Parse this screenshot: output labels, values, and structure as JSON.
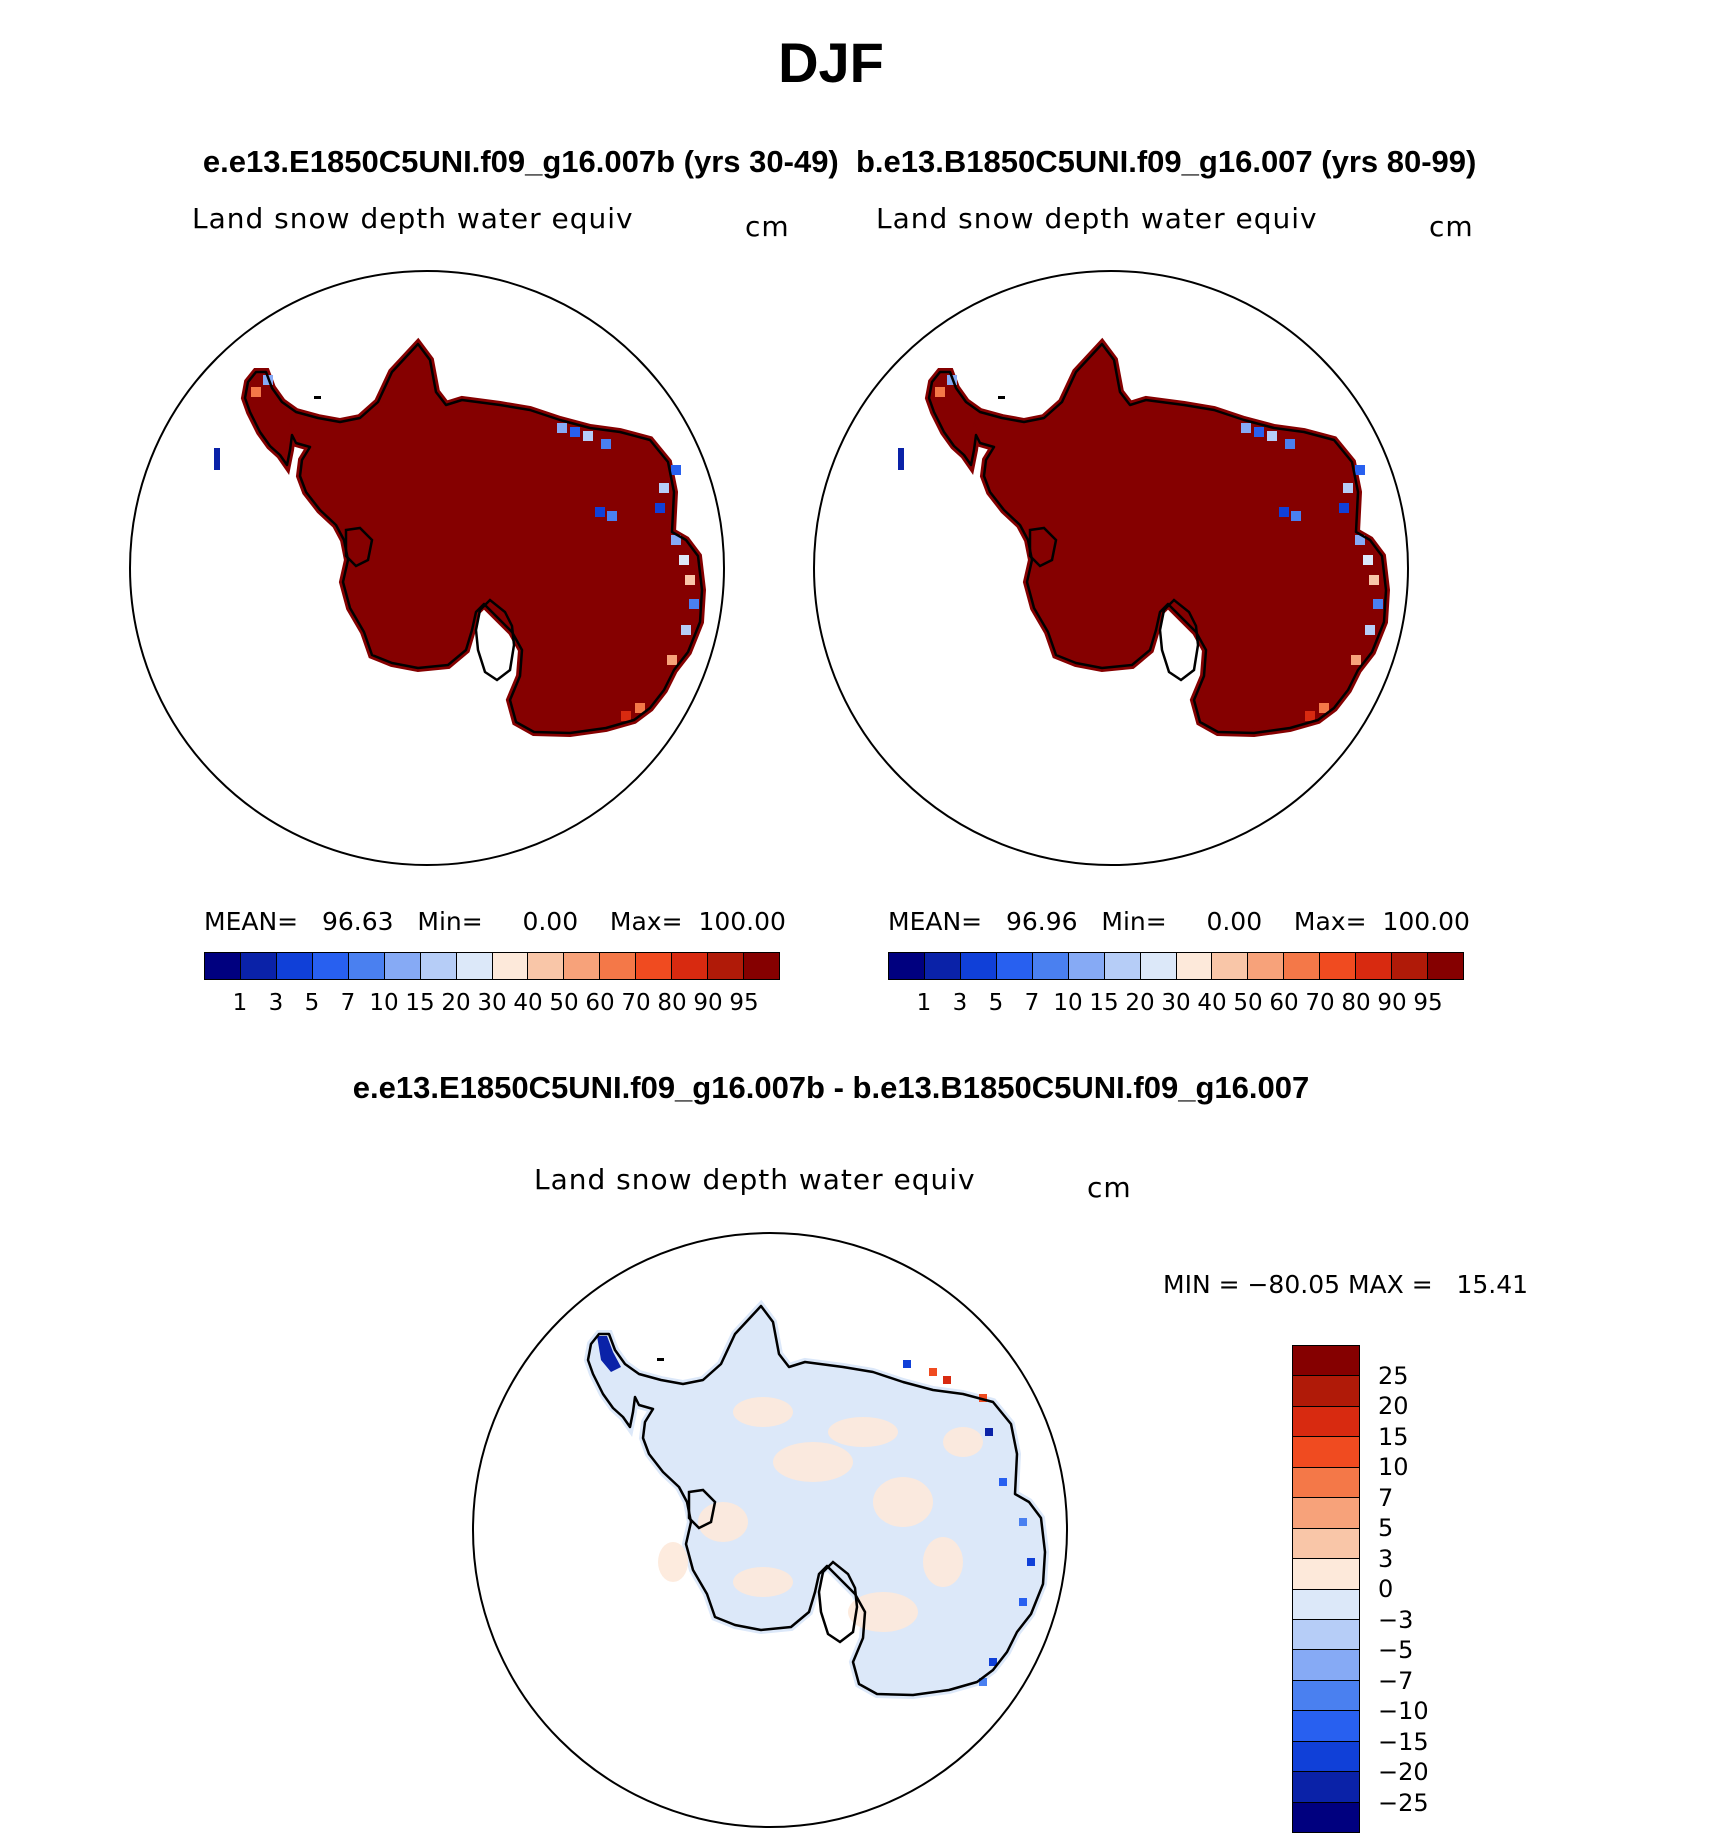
{
  "figure": {
    "season": "DJF",
    "subtitle_left": "e.e13.E1850C5UNI.f09_g16.007b (yrs 30-49)",
    "subtitle_right": "b.e13.B1850C5UNI.f09_g16.007 (yrs 80-99)",
    "diff_title": "e.e13.E1850C5UNI.f09_g16.007b - b.e13.B1850C5UNI.f09_g16.007"
  },
  "panels": [
    {
      "variable": "Land snow depth water equiv",
      "units": "cm",
      "mean_label": "MEAN=",
      "mean": "96.63",
      "min_label": "Min=",
      "min": "0.00",
      "max_label": "Max=",
      "max": "100.00"
    },
    {
      "variable": "Land snow depth water equiv",
      "units": "cm",
      "mean_label": "MEAN=",
      "mean": "96.96",
      "min_label": "Min=",
      "min": "0.00",
      "max_label": "Max=",
      "max": "100.00"
    }
  ],
  "diff_panel": {
    "variable": "Land snow depth water equiv",
    "units": "cm",
    "min_max": "MIN = −80.05 MAX =   15.41"
  },
  "colorbar": {
    "ticks": [
      "1",
      "3",
      "5",
      "7",
      "10",
      "15",
      "20",
      "30",
      "40",
      "50",
      "60",
      "70",
      "80",
      "90",
      "95"
    ],
    "colors": [
      "#00007f",
      "#0a22a8",
      "#1040d8",
      "#2860f0",
      "#4a80f0",
      "#86aaf5",
      "#b6cdf7",
      "#dce8f9",
      "#fde9da",
      "#f9c6a8",
      "#f7a27a",
      "#f47848",
      "#f04b20",
      "#d82a10",
      "#b01a08",
      "#850000"
    ]
  },
  "diff_colorbar": {
    "ticks": [
      "25",
      "20",
      "15",
      "10",
      "7",
      "5",
      "3",
      "0",
      "−3",
      "−5",
      "−7",
      "−10",
      "−15",
      "−20",
      "−25"
    ],
    "colors": [
      "#850000",
      "#b01a08",
      "#d82a10",
      "#f04b20",
      "#f47848",
      "#f7a27a",
      "#f9c6a8",
      "#fde9da",
      "#dce8f9",
      "#b6cdf7",
      "#86aaf5",
      "#4a80f0",
      "#2860f0",
      "#1040d8",
      "#0a22a8",
      "#00007f"
    ]
  },
  "map_colors": {
    "ice_sheet": "#850000",
    "diff_base": "#dce8f9",
    "diff_pos": "#fde9da"
  }
}
